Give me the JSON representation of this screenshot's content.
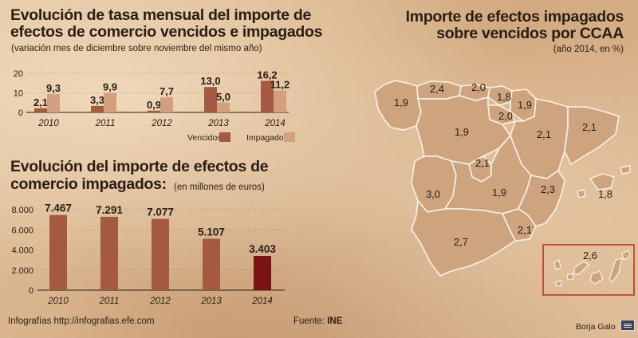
{
  "chart_data": [
    {
      "type": "bar",
      "title": "Evolución de tasa mensual del importe de efectos de comercio vencidos e impagados",
      "subtitle": "(variación mes de diciembre sobre noviembre del mismo año)",
      "categories": [
        "2010",
        "2011",
        "2012",
        "2013",
        "2014"
      ],
      "series": [
        {
          "name": "Vencidos",
          "values": [
            2.1,
            3.3,
            0.9,
            13.0,
            16.2
          ],
          "labels": [
            "2,1",
            "3,3",
            "0,9",
            "13,0",
            "16,2"
          ],
          "color": "#a45a40"
        },
        {
          "name": "Impagados",
          "values": [
            9.3,
            9.9,
            7.7,
            5.0,
            11.2
          ],
          "labels": [
            "9,3",
            "9,9",
            "7,7",
            "5,0",
            "11,2"
          ],
          "color": "#d39f80"
        }
      ],
      "yticks": [
        "0",
        "10",
        "20"
      ],
      "ylim": [
        0,
        20
      ]
    },
    {
      "type": "bar",
      "title": "Evolución del importe de efectos de comercio impagados:",
      "subtitle": "(en millones de euros)",
      "categories": [
        "2010",
        "2011",
        "2012",
        "2013",
        "2014"
      ],
      "values": [
        7467,
        7291,
        7077,
        5107,
        3403
      ],
      "labels": [
        "7.467",
        "7.291",
        "7.077",
        "5.107",
        "3.403"
      ],
      "colors": [
        "#a45a40",
        "#a45a40",
        "#a45a40",
        "#a45a40",
        "#7a1412"
      ],
      "yticks": [
        "0",
        "2.000",
        "4.000",
        "6.000",
        "8.000"
      ],
      "ylim": [
        0,
        8000
      ]
    }
  ],
  "map": {
    "title_line1": "Importe de efectos impagados",
    "title_line2": "sobre vencidos por CCAA",
    "subtitle": "(año 2014, en %)",
    "fill": "#cea47e",
    "stroke": "#fbf3e8",
    "inset_border": "#c0523c",
    "values": [
      {
        "region": "Galicia",
        "label": "1,9"
      },
      {
        "region": "Asturias",
        "label": "2,4"
      },
      {
        "region": "Cantabria",
        "label": "2,0"
      },
      {
        "region": "País Vasco",
        "label": "1,8"
      },
      {
        "region": "Navarra",
        "label": "1,9"
      },
      {
        "region": "La Rioja",
        "label": "2,0"
      },
      {
        "region": "Castilla y León",
        "label": "1,9"
      },
      {
        "region": "Aragón",
        "label": "2,1"
      },
      {
        "region": "Cataluña",
        "label": "2,1"
      },
      {
        "region": "Madrid",
        "label": "2,1"
      },
      {
        "region": "Extremadura",
        "label": "3,0"
      },
      {
        "region": "Castilla-La Mancha",
        "label": "1,9"
      },
      {
        "region": "Comunidad Valenciana",
        "label": "2,3"
      },
      {
        "region": "Baleares",
        "label": "1,8"
      },
      {
        "region": "Murcia",
        "label": "2,1"
      },
      {
        "region": "Andalucía",
        "label": "2,7"
      },
      {
        "region": "Canarias",
        "label": "2,6"
      }
    ]
  },
  "footer": {
    "credits": "Infografías http://infografias.efe.com",
    "source_label": "Fuente:",
    "source_value": "INE",
    "author": "Borja Galo"
  }
}
